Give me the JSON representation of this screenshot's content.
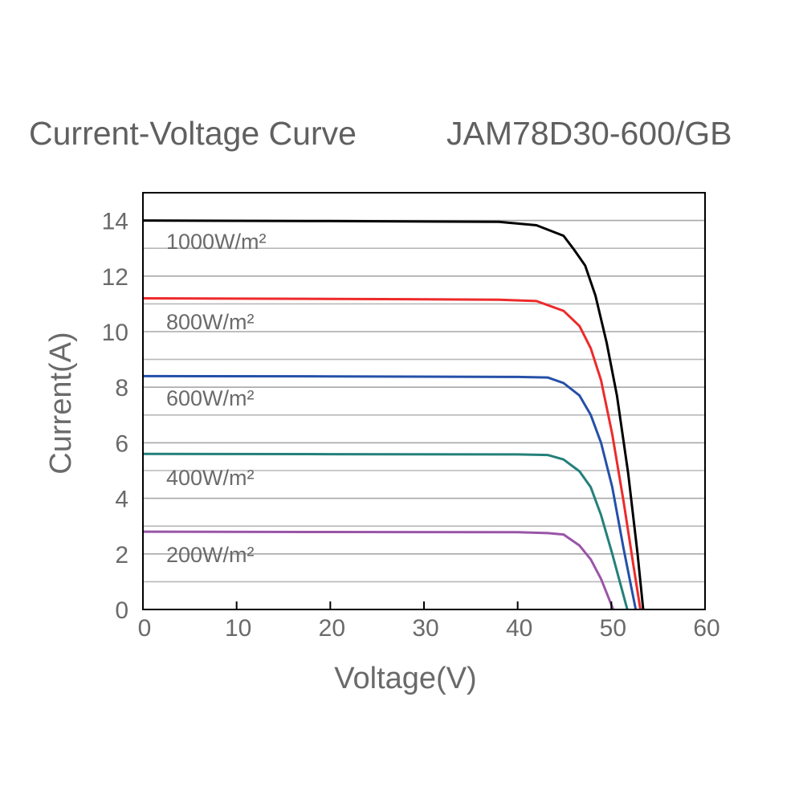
{
  "chart_data": {
    "type": "line",
    "title": "Current-Voltage Curve",
    "subtitle": "JAM78D30-600/GB",
    "xlabel": "Voltage(V)",
    "ylabel": "Current(A)",
    "xlim": [
      0,
      60
    ],
    "ylim": [
      0,
      15
    ],
    "xticks": [
      "0",
      "10",
      "20",
      "30",
      "40",
      "50",
      "60"
    ],
    "yticks": [
      "0",
      "2",
      "4",
      "6",
      "8",
      "10",
      "12",
      "14"
    ],
    "grid": "horizontal, every 1 A",
    "legend": "inline labels on left",
    "series": [
      {
        "name": "1000W/m²",
        "color": "#000000",
        "x": [
          0,
          20,
          38,
          42.0,
          44.9,
          46.0,
          47.2,
          48.3,
          49.5,
          50.6,
          51.8,
          52.8,
          53.4
        ],
        "y": [
          14.0,
          13.98,
          13.95,
          13.83,
          13.45,
          12.96,
          12.38,
          11.3,
          9.6,
          7.7,
          4.9,
          2.0,
          0
        ]
      },
      {
        "name": "800W/m²",
        "color": "#ee2a2a",
        "x": [
          0,
          20,
          38,
          42.0,
          44.9,
          46.6,
          47.8,
          48.9,
          50.1,
          51.3,
          52.4,
          53.1
        ],
        "y": [
          11.2,
          11.18,
          11.15,
          11.1,
          10.75,
          10.2,
          9.4,
          8.25,
          6.3,
          3.9,
          1.5,
          0
        ]
      },
      {
        "name": "600W/m²",
        "color": "#2450a8",
        "x": [
          0,
          20,
          40,
          43.2,
          44.9,
          46.6,
          47.8,
          48.9,
          50.1,
          51.3,
          52.6
        ],
        "y": [
          8.4,
          8.39,
          8.37,
          8.35,
          8.15,
          7.7,
          7.0,
          6.0,
          4.4,
          2.2,
          0
        ]
      },
      {
        "name": "400W/m²",
        "color": "#24807a",
        "x": [
          0,
          20,
          40,
          43.2,
          44.9,
          46.6,
          47.8,
          48.9,
          50.1,
          51.7
        ],
        "y": [
          5.6,
          5.59,
          5.58,
          5.56,
          5.4,
          4.97,
          4.4,
          3.4,
          2.0,
          0
        ]
      },
      {
        "name": "200W/m²",
        "color": "#9a55a8",
        "x": [
          0,
          20,
          40,
          43.2,
          44.9,
          46.6,
          47.8,
          48.9,
          50.2
        ],
        "y": [
          2.8,
          2.79,
          2.78,
          2.75,
          2.7,
          2.3,
          1.8,
          1.1,
          0
        ]
      }
    ]
  }
}
